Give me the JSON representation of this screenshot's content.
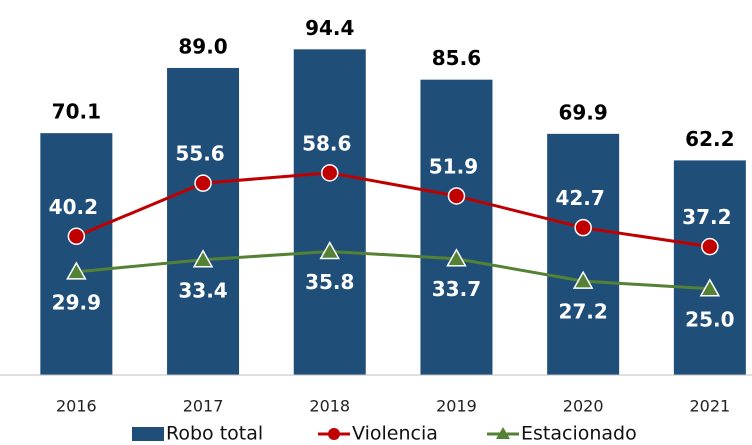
{
  "chart_data": {
    "type": "bar",
    "categories": [
      "2016",
      "2017",
      "2018",
      "2019",
      "2020",
      "2021"
    ],
    "ylim": [
      0,
      100
    ],
    "legend": "bottom",
    "series": [
      {
        "name": "Robo total",
        "type": "bar",
        "color": "#1f4e79",
        "values": [
          70.1,
          89.0,
          94.4,
          85.6,
          69.9,
          62.2
        ],
        "value_labels": [
          "70.1",
          "89.0",
          "94.4",
          "85.6",
          "69.9",
          "62.2"
        ]
      },
      {
        "name": "Violencia",
        "type": "line",
        "marker": "circle",
        "color": "#c00000",
        "values": [
          40.2,
          55.6,
          58.6,
          51.9,
          42.7,
          37.2
        ],
        "value_labels": [
          "40.2",
          "55.6",
          "58.6",
          "51.9",
          "42.7",
          "37.2"
        ]
      },
      {
        "name": "Estacionado",
        "type": "line",
        "marker": "triangle",
        "color": "#548235",
        "values": [
          29.9,
          33.4,
          35.8,
          33.7,
          27.2,
          25.0
        ],
        "value_labels": [
          "29.9",
          "33.4",
          "35.8",
          "33.7",
          "27.2",
          "25.0"
        ]
      }
    ]
  }
}
